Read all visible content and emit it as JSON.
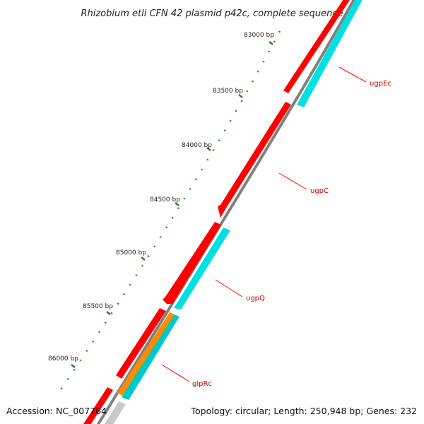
{
  "title": "Rhizobium etli CFN 42 plasmid p42c, complete sequence",
  "accession": "Accession: NC_007764",
  "summary": "Topology: circular; Length: 250,948 bp; Genes: 232",
  "bp_labels": [
    "83000 bp",
    "83500 bp",
    "84000 bp",
    "84500 bp",
    "85000 bp",
    "85500 bp",
    "86000 bp"
  ],
  "gene_labels": [
    "ugpEc",
    "ugpC",
    "ugpQ",
    "glpRc"
  ],
  "colors": {
    "backbone": "#808080",
    "forward_gene": "#ff0000",
    "reverse_gene": "#00e0e0",
    "regulator_gene": "#ff8c00",
    "ticks": "#228b22",
    "label_line": "#ff0000"
  }
}
